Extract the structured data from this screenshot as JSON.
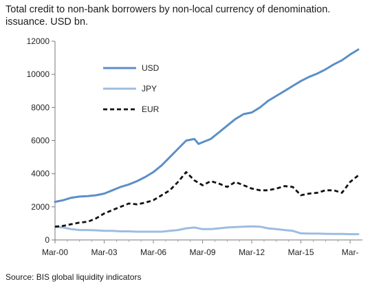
{
  "title": "Total credit to non-bank borrowers by non-local currency of denomination.\nissuance. USD bn.",
  "source": "Source: BIS global liquidity indicators",
  "chart_data": {
    "type": "line",
    "title": "Total credit to non-bank borrowers by non-local currency of denomination.\nissuance. USD bn.",
    "xlabel": "",
    "ylabel": "",
    "ylim": [
      0,
      12000
    ],
    "yticks": [
      0,
      2000,
      4000,
      6000,
      8000,
      10000,
      12000
    ],
    "ytick_labels": [
      "0",
      "2000",
      "4000",
      "6000",
      "8000",
      "10000",
      "12000"
    ],
    "xlim": [
      2000.0,
      2018.75
    ],
    "xticks": [
      2000,
      2003,
      2006,
      2009,
      2012,
      2015,
      2018
    ],
    "xtick_labels": [
      "Mar-00",
      "Mar-03",
      "Mar-06",
      "Mar-09",
      "Mar-12",
      "Mar-15",
      "Mar-"
    ],
    "grid": false,
    "legend_position": "upper-left",
    "series": [
      {
        "name": "USD",
        "color": "#5b8fc7",
        "style": "solid",
        "x": [
          2000.0,
          2000.5,
          2001.0,
          2001.5,
          2002.0,
          2002.5,
          2003.0,
          2003.5,
          2004.0,
          2004.5,
          2005.0,
          2005.5,
          2006.0,
          2006.5,
          2007.0,
          2007.5,
          2008.0,
          2008.5,
          2008.75,
          2009.0,
          2009.5,
          2010.0,
          2010.5,
          2011.0,
          2011.5,
          2012.0,
          2012.5,
          2013.0,
          2013.5,
          2014.0,
          2014.5,
          2015.0,
          2015.5,
          2016.0,
          2016.5,
          2017.0,
          2017.5,
          2018.0,
          2018.5
        ],
        "values": [
          2300,
          2400,
          2550,
          2620,
          2650,
          2700,
          2800,
          3000,
          3200,
          3350,
          3550,
          3800,
          4100,
          4500,
          5000,
          5500,
          6000,
          6100,
          5800,
          5900,
          6100,
          6500,
          6900,
          7300,
          7600,
          7700,
          8000,
          8400,
          8700,
          9000,
          9300,
          9600,
          9850,
          10050,
          10300,
          10600,
          10850,
          11200,
          11500
        ]
      },
      {
        "name": "JPY",
        "color": "#9cbde0",
        "style": "solid",
        "x": [
          2000.0,
          2000.5,
          2001.0,
          2001.5,
          2002.0,
          2002.5,
          2003.0,
          2003.5,
          2004.0,
          2004.5,
          2005.0,
          2005.5,
          2006.0,
          2006.5,
          2007.0,
          2007.5,
          2008.0,
          2008.5,
          2009.0,
          2009.5,
          2010.0,
          2010.5,
          2011.0,
          2011.5,
          2012.0,
          2012.5,
          2013.0,
          2013.5,
          2014.0,
          2014.5,
          2015.0,
          2015.5,
          2016.0,
          2016.5,
          2017.0,
          2017.5,
          2018.0,
          2018.5
        ],
        "values": [
          800,
          750,
          650,
          600,
          600,
          580,
          550,
          550,
          520,
          520,
          500,
          500,
          500,
          500,
          550,
          600,
          700,
          750,
          650,
          650,
          700,
          750,
          780,
          800,
          820,
          800,
          700,
          650,
          600,
          550,
          400,
          380,
          380,
          370,
          360,
          360,
          350,
          350
        ]
      },
      {
        "name": "EUR",
        "color": "#111111",
        "style": "dashed",
        "x": [
          2000.0,
          2000.5,
          2001.0,
          2001.5,
          2002.0,
          2002.5,
          2003.0,
          2003.5,
          2004.0,
          2004.5,
          2005.0,
          2005.5,
          2006.0,
          2006.5,
          2007.0,
          2007.5,
          2008.0,
          2008.5,
          2009.0,
          2009.5,
          2010.0,
          2010.5,
          2011.0,
          2011.5,
          2012.0,
          2012.5,
          2013.0,
          2013.5,
          2014.0,
          2014.5,
          2015.0,
          2015.5,
          2016.0,
          2016.5,
          2017.0,
          2017.5,
          2018.0,
          2018.5
        ],
        "values": [
          800,
          850,
          950,
          1050,
          1100,
          1300,
          1600,
          1800,
          2000,
          2200,
          2150,
          2250,
          2400,
          2700,
          3000,
          3500,
          4100,
          3600,
          3300,
          3550,
          3400,
          3200,
          3500,
          3300,
          3100,
          3000,
          3000,
          3100,
          3250,
          3200,
          2700,
          2800,
          2850,
          3000,
          3000,
          2850,
          3500,
          3900
        ]
      }
    ]
  }
}
